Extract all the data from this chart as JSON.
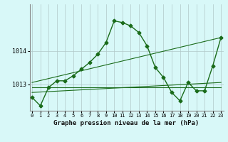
{
  "background_color": "#d8f8f8",
  "grid_color": "#b0c8c8",
  "line_color": "#1a6b1a",
  "xlabel": "Graphe pression niveau de la mer (hPa)",
  "x_ticks": [
    0,
    1,
    2,
    3,
    4,
    5,
    6,
    7,
    8,
    9,
    10,
    11,
    12,
    13,
    14,
    15,
    16,
    17,
    18,
    19,
    20,
    21,
    22,
    23
  ],
  "ylim": [
    1012.2,
    1015.4
  ],
  "yticks": [
    1013,
    1014
  ],
  "main_series": {
    "x": [
      0,
      1,
      2,
      3,
      4,
      5,
      6,
      7,
      8,
      9,
      10,
      11,
      12,
      13,
      14,
      15,
      16,
      17,
      18,
      19,
      20,
      21,
      22,
      23
    ],
    "y": [
      1012.6,
      1012.35,
      1012.9,
      1013.1,
      1013.1,
      1013.25,
      1013.45,
      1013.65,
      1013.9,
      1014.25,
      1014.9,
      1014.85,
      1014.75,
      1014.55,
      1014.15,
      1013.5,
      1013.2,
      1012.75,
      1012.5,
      1013.05,
      1012.8,
      1012.8,
      1013.55,
      1014.4
    ]
  },
  "straight_lines": [
    {
      "x": [
        0,
        23
      ],
      "y": [
        1012.9,
        1012.9
      ]
    },
    {
      "x": [
        0,
        23
      ],
      "y": [
        1012.75,
        1013.05
      ]
    },
    {
      "x": [
        0,
        23
      ],
      "y": [
        1013.05,
        1014.4
      ]
    }
  ]
}
